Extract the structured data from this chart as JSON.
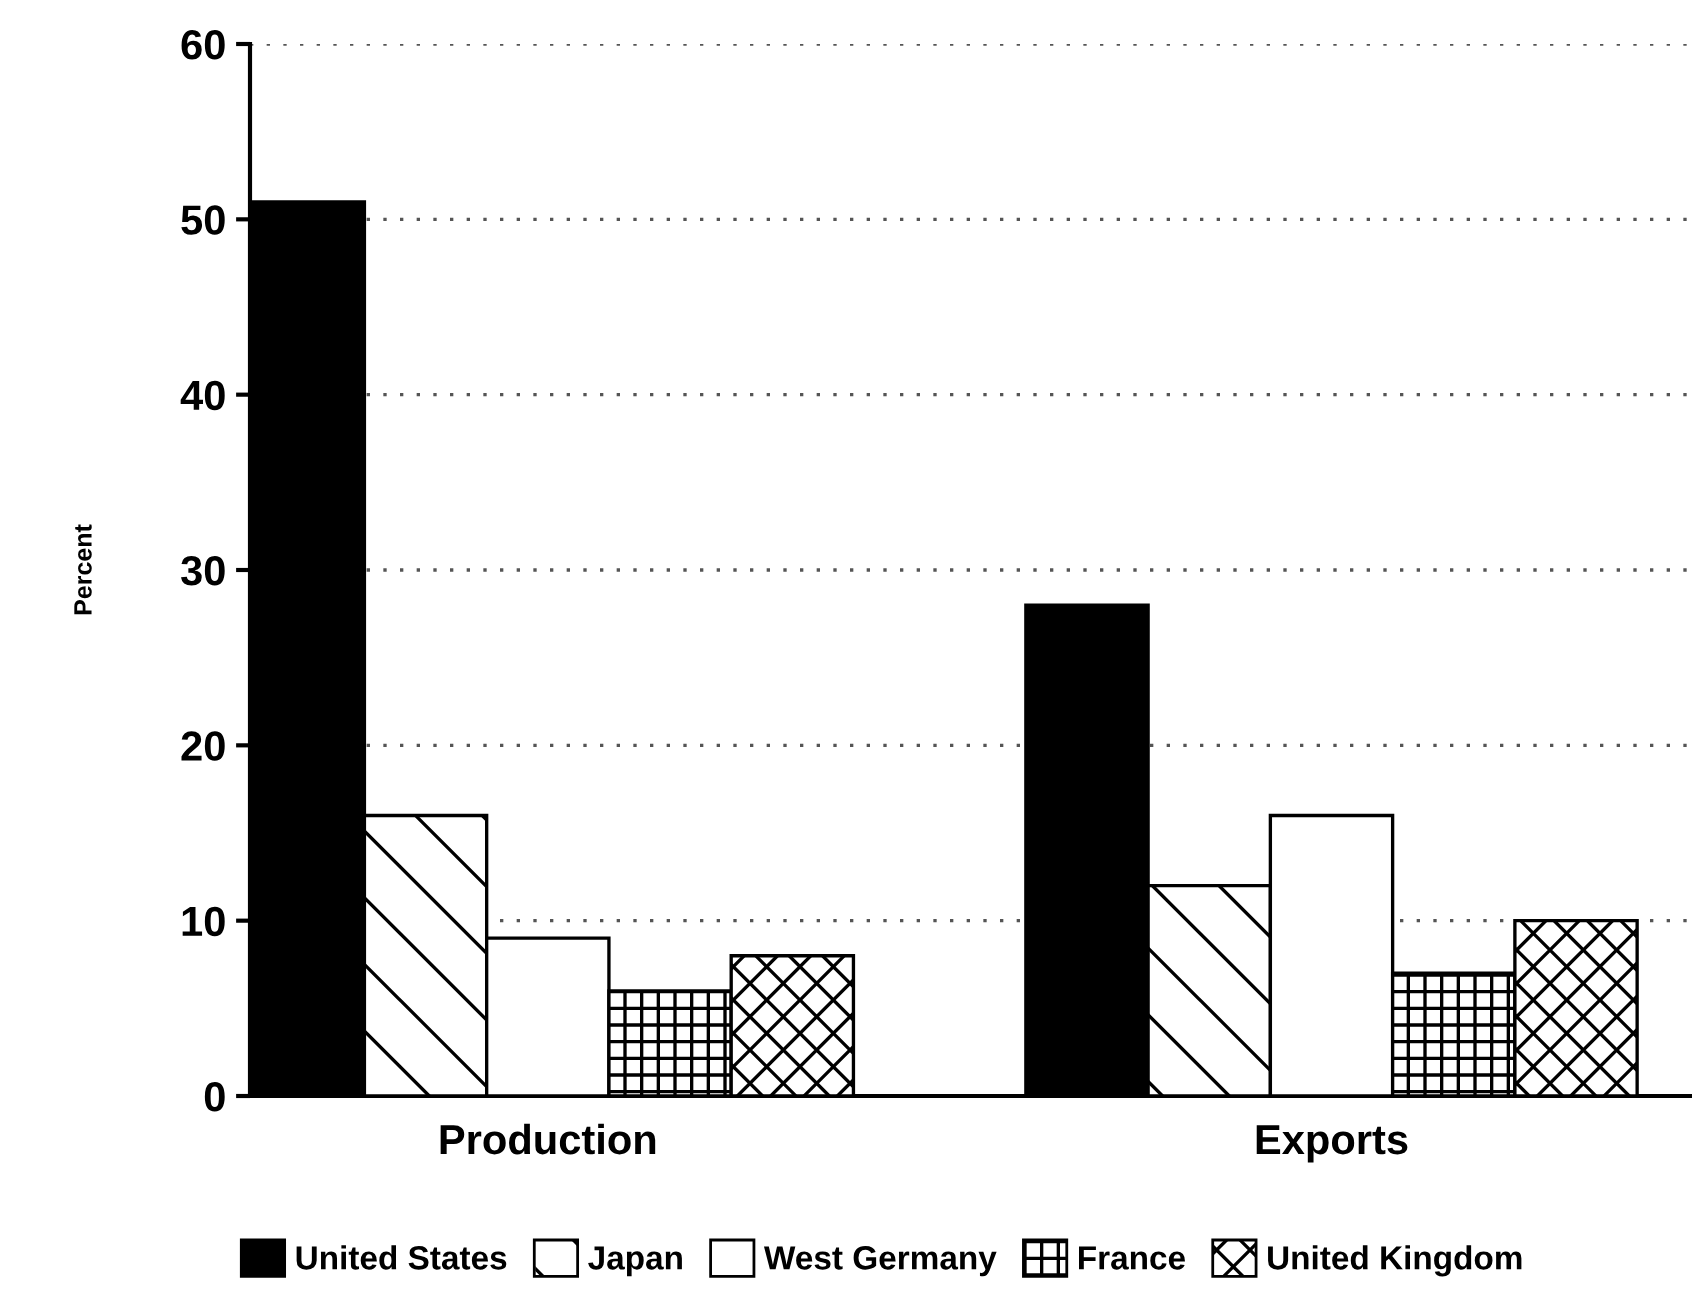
{
  "chart_data": {
    "type": "bar",
    "ylabel": "Percent",
    "categories": [
      "Production",
      "Exports"
    ],
    "series": [
      {
        "name": "United States",
        "color": "#000000",
        "values": [
          51,
          28
        ]
      },
      {
        "name": "Japan",
        "color": "#ffffff",
        "values": [
          16,
          12
        ]
      },
      {
        "name": "West Germany",
        "color": "#ffffff",
        "values": [
          9,
          16
        ]
      },
      {
        "name": "France",
        "color": "#ffffff",
        "values": [
          6,
          7
        ]
      },
      {
        "name": "United Kingdom",
        "color": "#ffffff",
        "values": [
          8,
          10
        ]
      }
    ],
    "ylim": [
      0,
      60
    ],
    "yticks": [
      0,
      10,
      20,
      30,
      40,
      50,
      60
    ],
    "grid": "y",
    "legend": "bottom"
  }
}
